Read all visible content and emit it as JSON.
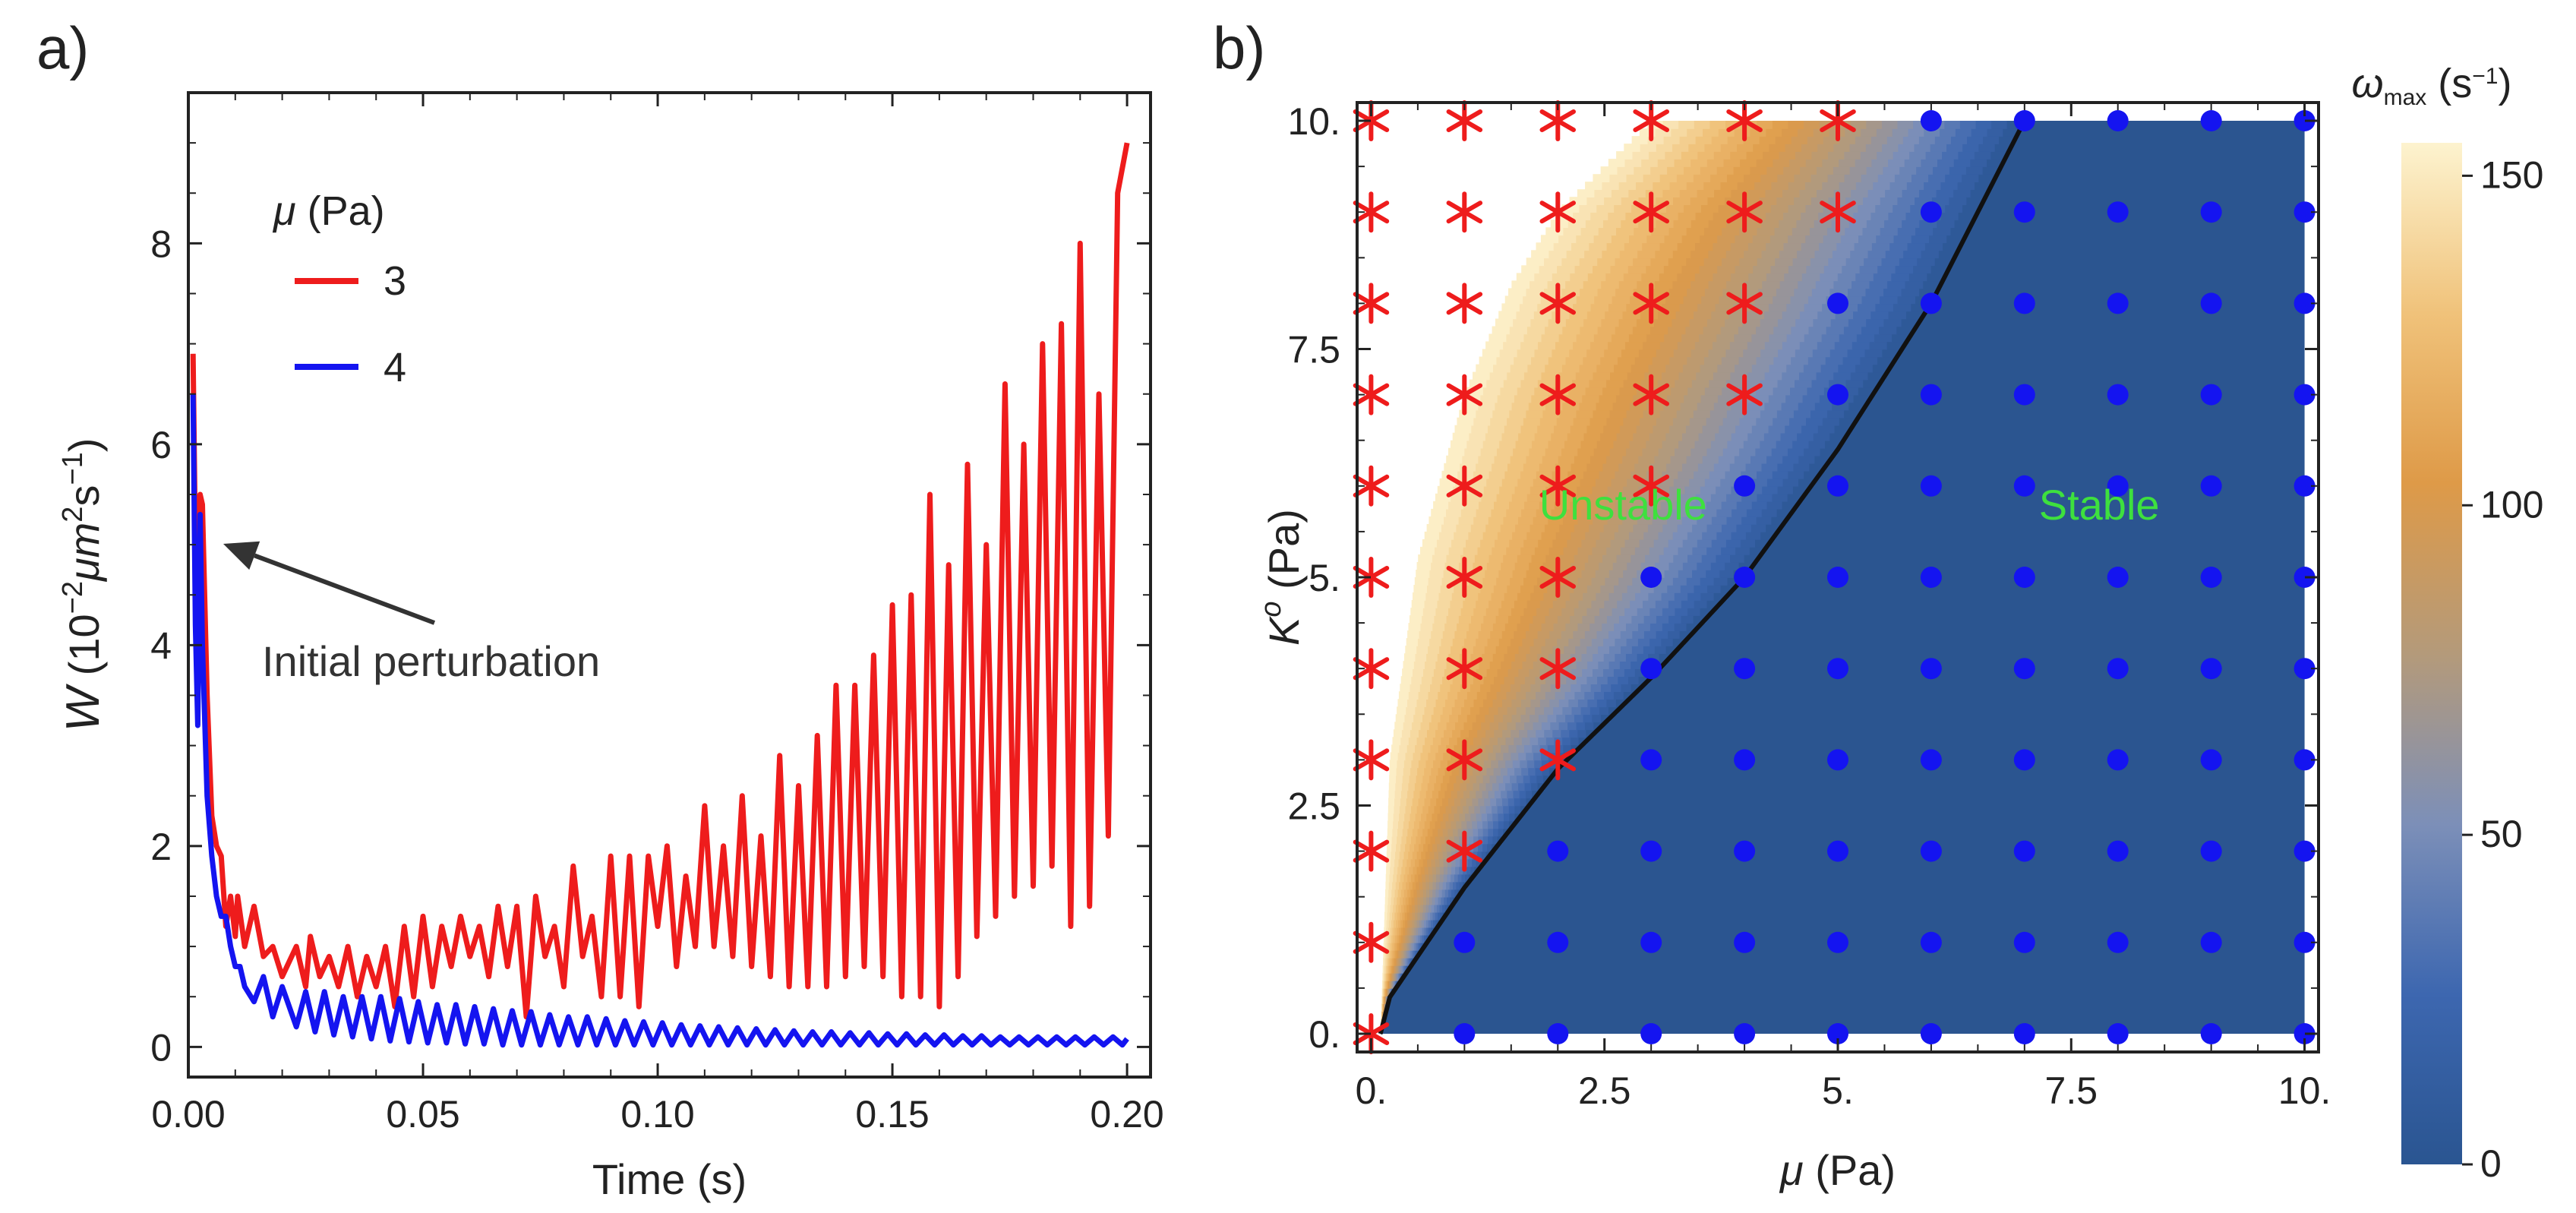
{
  "chart_data": [
    {
      "type": "line",
      "panel_label": "a)",
      "xlabel": "Time (s)",
      "ylabel_parts": {
        "sym": "W",
        "pre": " (10",
        "e1": "−2",
        "mid": "μm",
        "e2": "2",
        "s": "s",
        "e3": "−1",
        "post": ")"
      },
      "xlim": [
        0,
        0.205
      ],
      "ylim": [
        -0.3,
        9.5
      ],
      "xticks": [
        0.0,
        0.05,
        0.1,
        0.15,
        0.2
      ],
      "xtick_labels": [
        "0.00",
        "0.05",
        "0.10",
        "0.15",
        "0.20"
      ],
      "yticks": [
        0,
        2,
        4,
        6,
        8
      ],
      "ytick_labels": [
        "0",
        "2",
        "4",
        "6",
        "8"
      ],
      "legend": {
        "title": "μ (Pa)",
        "placement": "top-left"
      },
      "annotation": "Initial perturbation",
      "series": [
        {
          "name": "3",
          "color": "#ee1c1c",
          "x": [
            0.001,
            0.0015,
            0.002,
            0.0025,
            0.003,
            0.004,
            0.005,
            0.006,
            0.007,
            0.008,
            0.009,
            0.01,
            0.0105,
            0.012,
            0.014,
            0.016,
            0.018,
            0.02,
            0.023,
            0.025,
            0.026,
            0.028,
            0.03,
            0.032,
            0.034,
            0.036,
            0.038,
            0.04,
            0.042,
            0.044,
            0.046,
            0.048,
            0.05,
            0.052,
            0.054,
            0.056,
            0.058,
            0.06,
            0.062,
            0.064,
            0.066,
            0.068,
            0.07,
            0.072,
            0.074,
            0.076,
            0.078,
            0.08,
            0.082,
            0.084,
            0.086,
            0.088,
            0.09,
            0.092,
            0.094,
            0.096,
            0.098,
            0.1,
            0.102,
            0.104,
            0.106,
            0.108,
            0.11,
            0.112,
            0.114,
            0.116,
            0.118,
            0.12,
            0.122,
            0.124,
            0.126,
            0.128,
            0.13,
            0.132,
            0.134,
            0.136,
            0.138,
            0.14,
            0.142,
            0.144,
            0.146,
            0.148,
            0.15,
            0.152,
            0.154,
            0.156,
            0.158,
            0.16,
            0.162,
            0.164,
            0.166,
            0.168,
            0.17,
            0.172,
            0.174,
            0.176,
            0.178,
            0.18,
            0.182,
            0.184,
            0.186,
            0.188,
            0.19,
            0.192,
            0.194,
            0.196,
            0.198,
            0.2
          ],
          "y": [
            6.9,
            5.0,
            4.3,
            5.5,
            5.4,
            3.5,
            2.3,
            2.0,
            1.9,
            1.2,
            1.5,
            1.1,
            1.5,
            1.0,
            1.4,
            0.9,
            1.0,
            0.7,
            1.0,
            0.6,
            1.1,
            0.7,
            0.9,
            0.6,
            1.0,
            0.5,
            0.9,
            0.6,
            1.0,
            0.4,
            1.2,
            0.5,
            1.3,
            0.6,
            1.2,
            0.8,
            1.3,
            0.9,
            1.2,
            0.7,
            1.4,
            0.8,
            1.4,
            0.3,
            1.5,
            0.9,
            1.2,
            0.6,
            1.8,
            0.9,
            1.3,
            0.5,
            1.9,
            0.5,
            1.9,
            0.4,
            1.9,
            1.2,
            2.0,
            0.8,
            1.7,
            1.0,
            2.4,
            1.0,
            2.0,
            0.9,
            2.5,
            0.8,
            2.1,
            0.7,
            2.9,
            0.6,
            2.6,
            0.6,
            3.1,
            0.6,
            3.6,
            0.7,
            3.6,
            0.8,
            3.9,
            0.7,
            4.4,
            0.5,
            4.5,
            0.5,
            5.5,
            0.4,
            4.8,
            0.7,
            5.8,
            1.1,
            5.0,
            1.3,
            6.6,
            1.5,
            6.0,
            1.6,
            7.0,
            1.8,
            7.2,
            1.2,
            8.0,
            1.4,
            6.5,
            2.1,
            8.5,
            9.0
          ]
        },
        {
          "name": "4",
          "color": "#1414f0",
          "x": [
            0.001,
            0.0015,
            0.002,
            0.0025,
            0.003,
            0.004,
            0.005,
            0.006,
            0.007,
            0.008,
            0.009,
            0.01,
            0.011,
            0.012,
            0.014,
            0.016,
            0.018,
            0.02,
            0.023,
            0.025,
            0.027,
            0.029,
            0.031,
            0.033,
            0.035,
            0.037,
            0.039,
            0.041,
            0.043,
            0.045,
            0.047,
            0.049,
            0.051,
            0.053,
            0.055,
            0.057,
            0.059,
            0.061,
            0.063,
            0.065,
            0.067,
            0.069,
            0.071,
            0.073,
            0.075,
            0.077,
            0.079,
            0.081,
            0.083,
            0.085,
            0.087,
            0.089,
            0.091,
            0.093,
            0.095,
            0.097,
            0.099,
            0.101,
            0.103,
            0.105,
            0.107,
            0.109,
            0.111,
            0.113,
            0.115,
            0.117,
            0.119,
            0.121,
            0.123,
            0.125,
            0.127,
            0.129,
            0.131,
            0.133,
            0.135,
            0.137,
            0.139,
            0.141,
            0.143,
            0.145,
            0.147,
            0.149,
            0.151,
            0.153,
            0.155,
            0.157,
            0.159,
            0.161,
            0.163,
            0.165,
            0.167,
            0.169,
            0.171,
            0.173,
            0.175,
            0.177,
            0.179,
            0.181,
            0.183,
            0.185,
            0.187,
            0.189,
            0.191,
            0.193,
            0.195,
            0.197,
            0.199,
            0.2
          ],
          "y": [
            6.5,
            4.2,
            3.2,
            5.3,
            4.0,
            2.5,
            1.9,
            1.5,
            1.3,
            1.3,
            1.0,
            0.8,
            0.8,
            0.6,
            0.45,
            0.7,
            0.3,
            0.6,
            0.2,
            0.55,
            0.15,
            0.55,
            0.12,
            0.5,
            0.1,
            0.5,
            0.08,
            0.5,
            0.06,
            0.48,
            0.05,
            0.45,
            0.04,
            0.42,
            0.04,
            0.42,
            0.03,
            0.4,
            0.03,
            0.38,
            0.02,
            0.36,
            0.02,
            0.35,
            0.02,
            0.32,
            0.02,
            0.3,
            0.02,
            0.3,
            0.02,
            0.28,
            0.02,
            0.26,
            0.02,
            0.25,
            0.02,
            0.24,
            0.02,
            0.22,
            0.02,
            0.21,
            0.02,
            0.2,
            0.02,
            0.19,
            0.02,
            0.18,
            0.02,
            0.17,
            0.02,
            0.16,
            0.02,
            0.15,
            0.02,
            0.15,
            0.02,
            0.14,
            0.02,
            0.14,
            0.02,
            0.13,
            0.02,
            0.13,
            0.02,
            0.12,
            0.02,
            0.12,
            0.02,
            0.11,
            0.02,
            0.11,
            0.02,
            0.1,
            0.02,
            0.1,
            0.02,
            0.1,
            0.02,
            0.1,
            0.02,
            0.1,
            0.02,
            0.1,
            0.02,
            0.1,
            0.02,
            0.08
          ]
        }
      ]
    },
    {
      "type": "heatmap",
      "panel_label": "b)",
      "xlabel": "μ (Pa)",
      "ylabel_parts": {
        "sym": "K",
        "sup": "o",
        "post": " (Pa)"
      },
      "xlim": [
        -0.15,
        10.15
      ],
      "ylim": [
        -0.2,
        10.2
      ],
      "xticks": [
        0,
        2.5,
        5,
        7.5,
        10
      ],
      "xtick_labels": [
        "0.",
        "2.5",
        "5.",
        "7.5",
        "10."
      ],
      "yticks": [
        0,
        2.5,
        5,
        7.5,
        10
      ],
      "ytick_labels": [
        "0.",
        "2.5",
        "5.",
        "7.5",
        "10."
      ],
      "colorbar": {
        "title_sym": "ω",
        "title_sub": "max",
        "title_units_pre": " (s",
        "title_units_sup": "−1",
        "title_units_post": ")",
        "range": [
          0,
          155
        ],
        "ticks": [
          0,
          50,
          100,
          150
        ],
        "tick_labels": [
          "0",
          "50",
          "100",
          "150"
        ],
        "colors": [
          "#2a5591",
          "#3d67b0",
          "#7c8fb8",
          "#b49a7a",
          "#de9a48",
          "#f0c27a",
          "#fdf3cf"
        ]
      },
      "region_labels": {
        "unstable": "Unstable",
        "stable": "Stable"
      },
      "stable_color": "#2b5590",
      "boundary": {
        "color": "#111111",
        "mu": [
          0.1,
          0.2,
          1.0,
          2.0,
          3.0,
          4.0,
          5.0,
          6.0,
          7.0
        ],
        "k": [
          0.0,
          0.4,
          1.6,
          2.9,
          3.9,
          5.0,
          6.4,
          8.0,
          10.0
        ]
      },
      "filled_edge": {
        "mu": [
          0.1,
          0.2,
          0.5,
          1.0,
          1.5,
          2.0,
          3.0
        ],
        "k": [
          0.0,
          3.0,
          5.2,
          7.0,
          8.2,
          9.0,
          10.0
        ]
      },
      "unstable_marker_color": "#ee1c1c",
      "stable_marker_color": "#1414f0",
      "grid_mu": [
        0,
        1,
        2,
        3,
        4,
        5,
        6,
        7,
        8,
        9,
        10
      ],
      "grid_k": [
        0,
        1,
        2,
        3,
        4,
        5,
        6,
        7,
        8,
        9,
        10
      ],
      "unstable_thresholds": [
        0,
        1.5,
        2.5,
        5.5,
        6.5,
        8.5,
        10.5,
        10.5,
        10.5,
        10.5,
        10.5
      ]
    }
  ]
}
